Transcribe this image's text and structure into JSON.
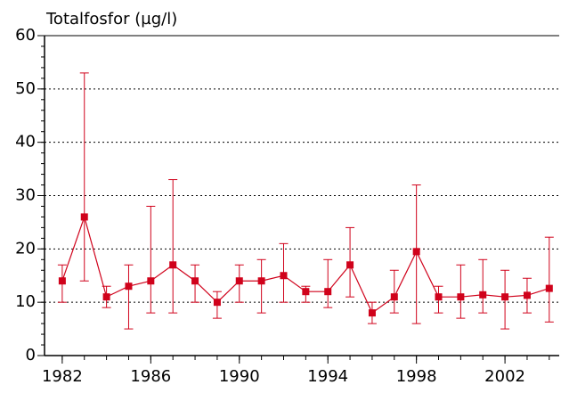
{
  "chart_data": {
    "type": "errorline",
    "title": "Totalfosfor (µg/l)",
    "x": [
      1982,
      1983,
      1984,
      1985,
      1986,
      1987,
      1988,
      1989,
      1990,
      1991,
      1992,
      1993,
      1994,
      1995,
      1996,
      1997,
      1998,
      1999,
      2000,
      2001,
      2002,
      2003,
      2004
    ],
    "values": [
      14,
      26,
      11,
      13,
      14,
      17,
      14,
      10,
      14,
      14,
      15,
      12,
      12,
      17,
      8,
      11,
      19.5,
      11,
      11,
      11.4,
      11,
      11.3,
      12.6
    ],
    "low": [
      10,
      14,
      9,
      5,
      8,
      8,
      10,
      7,
      10,
      8,
      10,
      10,
      9,
      11,
      6,
      8,
      6,
      8,
      7,
      8,
      5,
      8,
      6.3
    ],
    "high": [
      17,
      53,
      13,
      17,
      28,
      33,
      17,
      12,
      17,
      18,
      21,
      13,
      18,
      24,
      10,
      16,
      32,
      13,
      17,
      18,
      16,
      14.5,
      22.2
    ],
    "color": "#d0021b",
    "xlim": [
      1981.2,
      2004.45
    ],
    "xticks": [
      1982,
      1986,
      1990,
      1994,
      1998,
      2002
    ],
    "ylim": [
      0,
      60
    ],
    "yticks": [
      0,
      10,
      20,
      30,
      40,
      50,
      60
    ],
    "grid": true
  }
}
